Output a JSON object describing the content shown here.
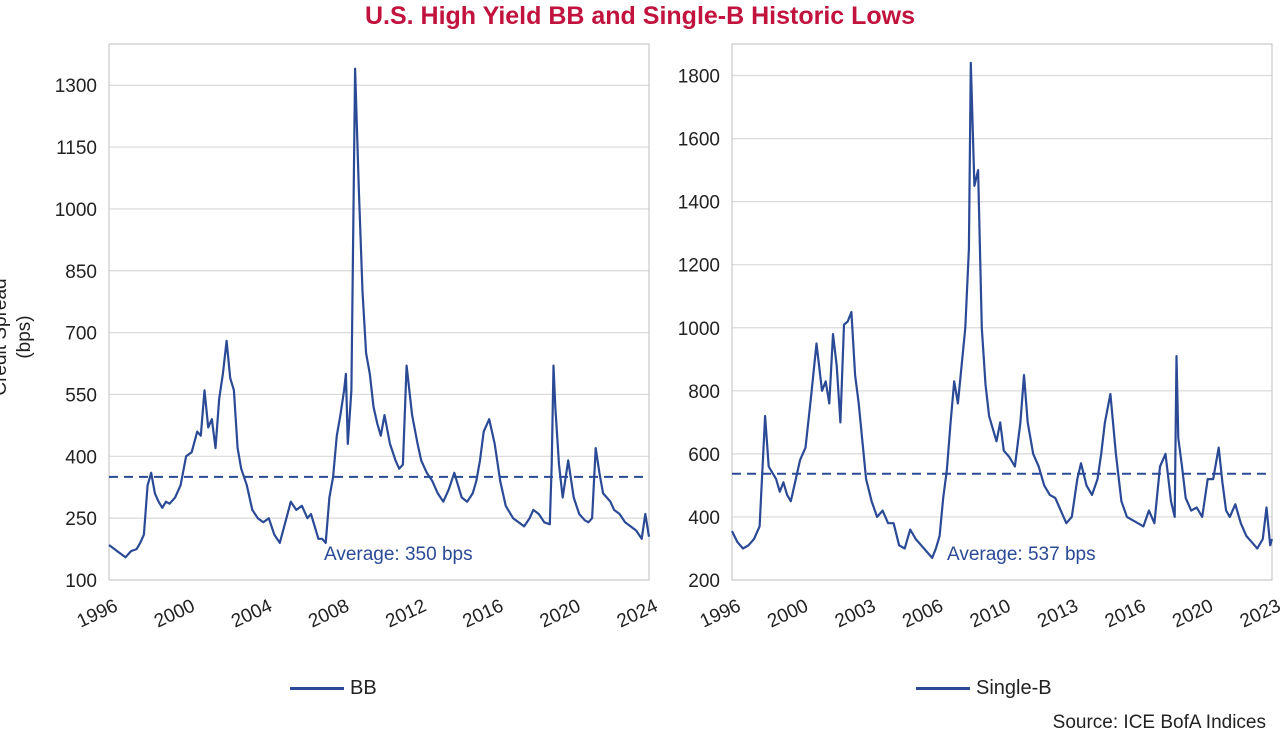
{
  "title": "U.S. High Yield BB and Single-B Historic Lows",
  "ylabel": "Credit Spread (bps)",
  "source": "Source: ICE BofA Indices",
  "colors": {
    "title": "#c1133d",
    "series": "#2b4a96",
    "grid": "#d9d9d9",
    "frame": "#bfbfbf"
  },
  "chart_data": [
    {
      "type": "line",
      "title": "",
      "xlabel": "",
      "ylabel": "Credit Spread (bps)",
      "ylim": [
        100,
        1400
      ],
      "xlim": [
        1996.0,
        2025.4
      ],
      "yticks": [
        100,
        250,
        400,
        550,
        700,
        850,
        1000,
        1150,
        1300
      ],
      "xticks": [
        "1996",
        "2000",
        "2004",
        "2008",
        "2012",
        "2016",
        "2020",
        "2024"
      ],
      "grid": "horizontal",
      "legend_position": "bottom",
      "average": {
        "value": 350,
        "label": "Average: 350 bps"
      },
      "series": [
        {
          "name": "BB",
          "x": [
            1996.0,
            1996.3,
            1996.6,
            1996.9,
            1997.2,
            1997.5,
            1997.7,
            1997.9,
            1998.1,
            1998.3,
            1998.5,
            1998.7,
            1998.9,
            1999.1,
            1999.3,
            1999.6,
            1999.9,
            2000.2,
            2000.5,
            2000.8,
            2001.0,
            2001.2,
            2001.4,
            2001.6,
            2001.8,
            2002.0,
            2002.2,
            2002.4,
            2002.6,
            2002.8,
            2003.0,
            2003.2,
            2003.5,
            2003.8,
            2004.1,
            2004.4,
            2004.7,
            2005.0,
            2005.3,
            2005.6,
            2005.9,
            2006.2,
            2006.5,
            2006.8,
            2007.0,
            2007.2,
            2007.4,
            2007.6,
            2007.8,
            2008.0,
            2008.2,
            2008.4,
            2008.6,
            2008.8,
            2008.9,
            2009.0,
            2009.2,
            2009.4,
            2009.6,
            2009.8,
            2010.0,
            2010.2,
            2010.4,
            2010.6,
            2010.8,
            2011.0,
            2011.3,
            2011.6,
            2011.8,
            2012.0,
            2012.2,
            2012.5,
            2012.8,
            2013.0,
            2013.3,
            2013.6,
            2013.9,
            2014.2,
            2014.5,
            2014.8,
            2015.0,
            2015.2,
            2015.5,
            2015.8,
            2016.0,
            2016.2,
            2016.4,
            2016.7,
            2017.0,
            2017.3,
            2017.6,
            2018.0,
            2018.3,
            2018.6,
            2018.9,
            2019.1,
            2019.4,
            2019.7,
            2020.0,
            2020.1,
            2020.2,
            2020.3,
            2020.5,
            2020.7,
            2021.0,
            2021.3,
            2021.6,
            2021.9,
            2022.1,
            2022.3,
            2022.5,
            2022.7,
            2022.9,
            2023.1,
            2023.3,
            2023.5,
            2023.8,
            2024.1,
            2024.4,
            2024.7,
            2025.0,
            2025.2,
            2025.4
          ],
          "values": [
            185,
            175,
            165,
            155,
            170,
            175,
            190,
            210,
            330,
            360,
            310,
            290,
            275,
            290,
            285,
            300,
            330,
            400,
            410,
            460,
            450,
            560,
            470,
            490,
            420,
            540,
            600,
            680,
            590,
            560,
            420,
            370,
            330,
            270,
            250,
            240,
            250,
            210,
            190,
            240,
            290,
            270,
            280,
            250,
            260,
            230,
            200,
            200,
            190,
            300,
            350,
            450,
            500,
            560,
            600,
            430,
            560,
            1340,
            1050,
            800,
            650,
            600,
            520,
            480,
            450,
            500,
            430,
            390,
            370,
            380,
            620,
            500,
            430,
            390,
            360,
            340,
            310,
            290,
            320,
            360,
            330,
            300,
            290,
            310,
            340,
            390,
            460,
            490,
            430,
            340,
            280,
            250,
            240,
            230,
            250,
            270,
            260,
            240,
            235,
            380,
            620,
            520,
            380,
            300,
            390,
            300,
            260,
            245,
            240,
            250,
            420,
            360,
            310,
            300,
            290,
            270,
            260,
            240,
            230,
            220,
            200,
            260,
            205
          ]
        }
      ]
    },
    {
      "type": "line",
      "title": "",
      "xlabel": "",
      "ylabel": "",
      "ylim": [
        200,
        1900
      ],
      "xlim": [
        1996.0,
        2025.4
      ],
      "yticks": [
        200,
        400,
        600,
        800,
        1000,
        1200,
        1400,
        1600,
        1800
      ],
      "xticks": [
        "1996",
        "2000",
        "2003",
        "2006",
        "2010",
        "2013",
        "2016",
        "2020",
        "2023"
      ],
      "grid": "horizontal",
      "legend_position": "bottom",
      "average": {
        "value": 537,
        "label": "Average: 537 bps"
      },
      "series": [
        {
          "name": "Single-B",
          "x": [
            1996.0,
            1996.3,
            1996.6,
            1996.9,
            1997.2,
            1997.5,
            1997.8,
            1998.0,
            1998.2,
            1998.4,
            1998.6,
            1998.8,
            1999.0,
            1999.2,
            1999.4,
            1999.7,
            2000.0,
            2000.3,
            2000.6,
            2000.9,
            2001.1,
            2001.3,
            2001.5,
            2001.7,
            2001.9,
            2002.1,
            2002.3,
            2002.5,
            2002.7,
            2002.9,
            2003.1,
            2003.3,
            2003.6,
            2003.9,
            2004.2,
            2004.5,
            2004.8,
            2005.1,
            2005.4,
            2005.7,
            2006.0,
            2006.3,
            2006.6,
            2006.9,
            2007.1,
            2007.3,
            2007.5,
            2007.7,
            2007.9,
            2008.1,
            2008.3,
            2008.5,
            2008.7,
            2008.9,
            2009.0,
            2009.2,
            2009.4,
            2009.6,
            2009.8,
            2010.0,
            2010.2,
            2010.4,
            2010.6,
            2010.8,
            2011.1,
            2011.4,
            2011.7,
            2011.9,
            2012.1,
            2012.4,
            2012.7,
            2013.0,
            2013.3,
            2013.6,
            2013.9,
            2014.2,
            2014.5,
            2014.8,
            2015.0,
            2015.3,
            2015.6,
            2015.9,
            2016.1,
            2016.3,
            2016.6,
            2016.9,
            2017.2,
            2017.5,
            2017.8,
            2018.1,
            2018.4,
            2018.7,
            2019.0,
            2019.3,
            2019.6,
            2019.9,
            2020.1,
            2020.2,
            2020.3,
            2020.5,
            2020.7,
            2021.0,
            2021.3,
            2021.6,
            2021.9,
            2022.2,
            2022.5,
            2022.7,
            2022.9,
            2023.1,
            2023.4,
            2023.7,
            2024.0,
            2024.3,
            2024.6,
            2024.9,
            2025.1,
            2025.3,
            2025.4
          ],
          "values": [
            355,
            320,
            300,
            310,
            330,
            370,
            720,
            560,
            540,
            520,
            480,
            510,
            470,
            450,
            500,
            580,
            620,
            780,
            950,
            800,
            830,
            760,
            980,
            880,
            700,
            1010,
            1020,
            1050,
            850,
            760,
            640,
            520,
            450,
            400,
            420,
            380,
            380,
            310,
            300,
            360,
            330,
            310,
            290,
            270,
            300,
            340,
            460,
            550,
            700,
            830,
            760,
            880,
            1000,
            1250,
            1840,
            1450,
            1500,
            1000,
            820,
            720,
            680,
            640,
            700,
            610,
            590,
            560,
            700,
            850,
            700,
            600,
            560,
            500,
            470,
            460,
            420,
            380,
            400,
            520,
            570,
            500,
            470,
            520,
            600,
            700,
            790,
            600,
            450,
            400,
            390,
            380,
            370,
            420,
            380,
            560,
            600,
            450,
            400,
            910,
            650,
            560,
            460,
            420,
            430,
            400,
            520,
            520,
            620,
            510,
            420,
            400,
            440,
            380,
            340,
            320,
            300,
            330,
            430,
            310,
            330
          ]
        }
      ]
    }
  ]
}
